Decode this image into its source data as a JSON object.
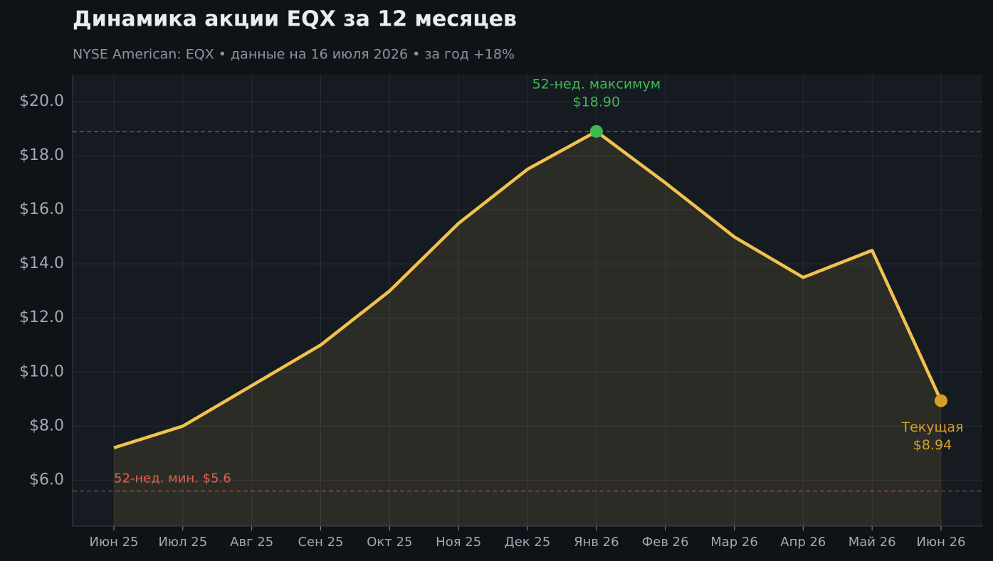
{
  "chart_data": {
    "type": "line",
    "title": "Динамика акции EQX за 12 месяцев",
    "subtitle": "NYSE American: EQX  •  данные на 16 июля 2026  •  за год +18%",
    "categories": [
      "Июн 25",
      "Июл 25",
      "Авг 25",
      "Сен 25",
      "Окт 25",
      "Ноя 25",
      "Дек 25",
      "Янв 26",
      "Фев 26",
      "Мар 26",
      "Апр 26",
      "Май 26",
      "Июн 26"
    ],
    "series": [
      {
        "color": "#f2c14e",
        "values": [
          7.2,
          8.0,
          9.5,
          11.0,
          13.0,
          15.5,
          17.5,
          18.9,
          17.0,
          15.0,
          13.5,
          14.5,
          8.94
        ],
        "value_labels": [
          null,
          null,
          null,
          null,
          null,
          null,
          null,
          "$18.90",
          null,
          null,
          null,
          null,
          "$8.94"
        ],
        "point_labels": [
          null,
          null,
          null,
          null,
          null,
          null,
          null,
          "52-нед. максимум",
          null,
          null,
          null,
          null,
          "Текущая"
        ],
        "point_colors": [
          null,
          null,
          null,
          null,
          null,
          null,
          null,
          "#3fb950",
          null,
          null,
          null,
          null,
          "#d4a027"
        ]
      }
    ],
    "reference_lines": [
      {
        "value": 18.9,
        "color": "#3fb950"
      },
      {
        "value": 5.6,
        "label": "52-нед. мин. $5.6",
        "color": "#e5534b"
      }
    ],
    "ylim": [
      4.3,
      21.0
    ],
    "yticks": [
      {
        "value": 6,
        "label": "$6.0"
      },
      {
        "value": 8,
        "label": "$8.0"
      },
      {
        "value": 10,
        "label": "$10.0"
      },
      {
        "value": 12,
        "label": "$12.0"
      },
      {
        "value": 14,
        "label": "$14.0"
      },
      {
        "value": 16,
        "label": "$16.0"
      },
      {
        "value": 18,
        "label": "$18.0"
      },
      {
        "value": 20,
        "label": "$20.0"
      }
    ],
    "grid": true
  }
}
